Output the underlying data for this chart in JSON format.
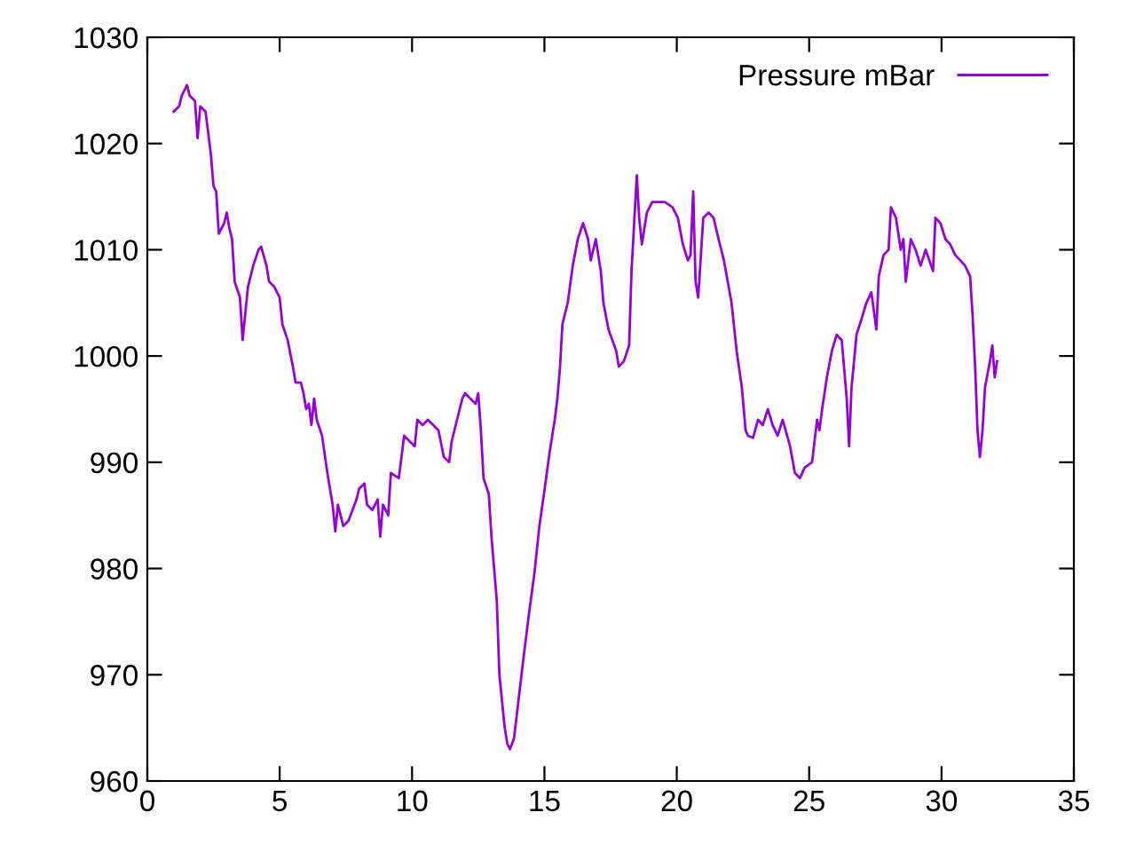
{
  "chart_data": {
    "type": "line",
    "xlim": [
      0,
      35
    ],
    "ylim": [
      960,
      1030
    ],
    "xticks": [
      0,
      5,
      10,
      15,
      20,
      25,
      30,
      35
    ],
    "yticks": [
      960,
      970,
      980,
      990,
      1000,
      1010,
      1020,
      1030
    ],
    "grid": false,
    "legend": "top right",
    "marker": "none",
    "line_style": "solid",
    "series": [
      {
        "name": "Pressure mBar",
        "color": "#9400d3",
        "x": [
          1.0,
          1.2,
          1.3,
          1.5,
          1.6,
          1.8,
          1.9,
          2.0,
          2.2,
          2.4,
          2.5,
          2.6,
          2.7,
          2.9,
          3.0,
          3.1,
          3.2,
          3.3,
          3.5,
          3.6,
          3.7,
          3.8,
          4.0,
          4.2,
          4.3,
          4.5,
          4.6,
          4.8,
          5.0,
          5.1,
          5.3,
          5.5,
          5.6,
          5.8,
          5.9,
          6.0,
          6.1,
          6.2,
          6.3,
          6.4,
          6.6,
          6.8,
          7.0,
          7.1,
          7.2,
          7.4,
          7.6,
          7.9,
          8.0,
          8.2,
          8.3,
          8.5,
          8.7,
          8.8,
          8.9,
          9.1,
          9.2,
          9.5,
          9.7,
          9.9,
          10.1,
          10.2,
          10.4,
          10.6,
          10.8,
          11.0,
          11.2,
          11.4,
          11.5,
          11.7,
          11.9,
          12.0,
          12.2,
          12.4,
          12.5,
          12.6,
          12.7,
          12.9,
          13.0,
          13.2,
          13.3,
          13.5,
          13.6,
          13.7,
          13.85,
          14.04,
          14.23,
          14.43,
          14.62,
          14.81,
          15.01,
          15.2,
          15.39,
          15.49,
          15.59,
          15.68,
          15.88,
          16.07,
          16.26,
          16.46,
          16.65,
          16.75,
          16.94,
          17.13,
          17.23,
          17.42,
          17.71,
          17.81,
          18.0,
          18.2,
          18.29,
          18.39,
          18.49,
          18.58,
          18.68,
          18.87,
          19.07,
          19.36,
          19.55,
          19.84,
          20.04,
          20.23,
          20.42,
          20.52,
          20.62,
          20.71,
          20.81,
          21.0,
          21.2,
          21.39,
          21.58,
          21.78,
          22.07,
          22.26,
          22.46,
          22.6,
          22.69,
          22.88,
          23.07,
          23.25,
          23.44,
          23.62,
          23.81,
          24.0,
          24.28,
          24.46,
          24.65,
          24.83,
          25.11,
          25.3,
          25.39,
          25.49,
          25.67,
          25.86,
          26.04,
          26.23,
          26.42,
          26.51,
          26.6,
          26.79,
          26.98,
          27.16,
          27.35,
          27.54,
          27.63,
          27.81,
          28.0,
          28.09,
          28.28,
          28.46,
          28.56,
          28.65,
          28.84,
          29.02,
          29.21,
          29.4,
          29.68,
          29.77,
          29.96,
          30.15,
          30.33,
          30.52,
          30.71,
          30.89,
          31.08,
          31.17,
          31.27,
          31.36,
          31.45,
          31.55,
          31.64,
          31.83,
          31.92,
          32.01,
          32.1
        ],
        "values": [
          1023,
          1023.5,
          1024.5,
          1025.5,
          1024.5,
          1024,
          1020.5,
          1023.5,
          1023,
          1019,
          1016,
          1015.5,
          1011.5,
          1012.5,
          1013.5,
          1012,
          1011,
          1007,
          1005.5,
          1001.5,
          1004,
          1006.5,
          1008.5,
          1010,
          1010.3,
          1008.5,
          1007,
          1006.5,
          1005.5,
          1003,
          1001.5,
          999,
          997.5,
          997.5,
          996.5,
          995,
          995.5,
          993.5,
          996,
          994,
          992.5,
          989,
          986,
          983.5,
          986,
          984,
          984.5,
          986.5,
          987.5,
          988,
          986,
          985.5,
          986.5,
          983,
          986,
          985,
          989,
          988.5,
          992.5,
          992,
          991.5,
          994,
          993.5,
          994,
          993.5,
          993,
          990.5,
          990,
          992,
          994,
          996,
          996.5,
          996,
          995.5,
          996.5,
          993,
          988.5,
          987,
          983,
          977,
          970,
          965,
          963.5,
          963,
          964,
          968,
          972,
          976,
          979.5,
          984,
          987.5,
          991,
          994,
          996,
          999,
          1003,
          1005,
          1008.5,
          1011,
          1012.5,
          1011,
          1009,
          1011,
          1008,
          1005,
          1002.5,
          1000.5,
          999,
          999.5,
          1001,
          1008,
          1012.5,
          1017,
          1013,
          1010.5,
          1013.5,
          1014.5,
          1014.5,
          1014.5,
          1014,
          1013,
          1010.5,
          1009,
          1009.5,
          1015.5,
          1007,
          1005.5,
          1013,
          1013.5,
          1013,
          1011,
          1009,
          1005,
          1000.5,
          997,
          993,
          992.5,
          992.3,
          994,
          993.5,
          995,
          993.5,
          992.5,
          994,
          991.5,
          989,
          988.5,
          989.5,
          990,
          994,
          993,
          995,
          998,
          1000.5,
          1002,
          1001.5,
          996,
          991.5,
          997,
          1002,
          1003.5,
          1005,
          1006,
          1002.5,
          1007.5,
          1009.5,
          1010,
          1014,
          1013,
          1010,
          1011,
          1007,
          1011,
          1010,
          1008.5,
          1010,
          1008,
          1013,
          1012.5,
          1011,
          1010.5,
          1009.5,
          1009,
          1008.5,
          1007.5,
          1004,
          999,
          993,
          990.5,
          993,
          997,
          999.5,
          1001,
          998,
          999.5
        ]
      }
    ]
  }
}
